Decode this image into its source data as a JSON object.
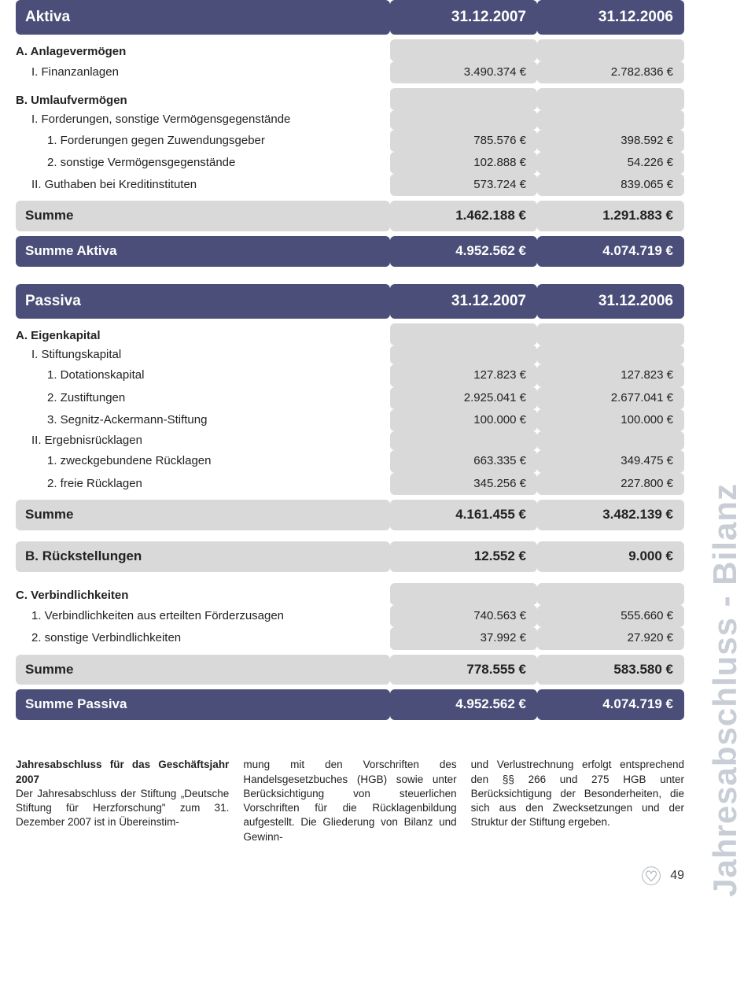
{
  "side_label": "Jahresabschluss - Bilanz",
  "page_number": "49",
  "colors": {
    "header_bg": "#4a4e78",
    "cell_bg": "#d9d9da",
    "side_text": "#c9ced6",
    "heart_outline": "#b0b4bd"
  },
  "aktiva": {
    "header": {
      "label": "Aktiva",
      "c1": "31.12.2007",
      "c2": "31.12.2006"
    },
    "rows": [
      {
        "type": "sec",
        "label": "A.  Anlagevermögen"
      },
      {
        "type": "sub",
        "label": "I.   Finanzanlagen",
        "v1": "3.490.374 €",
        "v2": "2.782.836 €"
      },
      {
        "type": "spacer"
      },
      {
        "type": "sec",
        "label": "B.  Umlaufvermögen"
      },
      {
        "type": "sub",
        "label": "I.   Forderungen, sonstige Vermögensgegenstände"
      },
      {
        "type": "subsub",
        "label": "1.  Forderungen gegen Zuwendungsgeber",
        "v1": "785.576 €",
        "v2": "398.592 €"
      },
      {
        "type": "subsub",
        "label": "2.  sonstige Vermögensgegenstände",
        "v1": "102.888 €",
        "v2": "54.226 €"
      },
      {
        "type": "sub",
        "label": "II.  Guthaben bei Kreditinstituten",
        "v1": "573.724 €",
        "v2": "839.065 €"
      },
      {
        "type": "spacer"
      },
      {
        "type": "sum",
        "label": "Summe",
        "v1": "1.462.188 €",
        "v2": "1.291.883 €"
      },
      {
        "type": "spacer"
      },
      {
        "type": "tot",
        "label": "Summe Aktiva",
        "v1": "4.952.562 €",
        "v2": "4.074.719 €"
      }
    ]
  },
  "passiva": {
    "header": {
      "label": "Passiva",
      "c1": "31.12.2007",
      "c2": "31.12.2006"
    },
    "rows": [
      {
        "type": "sec",
        "label": "A.  Eigenkapital"
      },
      {
        "type": "sub",
        "label": "I.   Stiftungskapital"
      },
      {
        "type": "subsub",
        "label": "1.  Dotationskapital",
        "v1": "127.823 €",
        "v2": "127.823 €"
      },
      {
        "type": "subsub",
        "label": "2.  Zustiftungen",
        "v1": "2.925.041 €",
        "v2": "2.677.041 €"
      },
      {
        "type": "subsub",
        "label": "3.  Segnitz-Ackermann-Stiftung",
        "v1": "100.000 €",
        "v2": "100.000 €"
      },
      {
        "type": "sub",
        "label": "II.  Ergebnisrücklagen"
      },
      {
        "type": "subsub",
        "label": "1.  zweckgebundene Rücklagen",
        "v1": "663.335 €",
        "v2": "349.475 €"
      },
      {
        "type": "subsub",
        "label": "2.  freie Rücklagen",
        "v1": "345.256 €",
        "v2": "227.800 €"
      },
      {
        "type": "spacer"
      },
      {
        "type": "sum",
        "label": "Summe",
        "v1": "4.161.455 €",
        "v2": "3.482.139 €"
      },
      {
        "type": "spacerbig"
      },
      {
        "type": "sumsec",
        "label": "B.  Rückstellungen",
        "v1": "12.552 €",
        "v2": "9.000 €"
      },
      {
        "type": "spacerbig"
      },
      {
        "type": "sec",
        "label": "C.  Verbindlichkeiten"
      },
      {
        "type": "sub",
        "label": "1.  Verbindlichkeiten aus erteilten Förderzusagen",
        "v1": "740.563 €",
        "v2": "555.660 €"
      },
      {
        "type": "sub",
        "label": "2.  sonstige Verbindlichkeiten",
        "v1": "37.992 €",
        "v2": "27.920 €"
      },
      {
        "type": "spacer"
      },
      {
        "type": "sum",
        "label": "Summe",
        "v1": "778.555 €",
        "v2": "583.580 €"
      },
      {
        "type": "spacer"
      },
      {
        "type": "tot",
        "label": "Summe Passiva",
        "v1": "4.952.562 €",
        "v2": "4.074.719 €"
      }
    ]
  },
  "footer": {
    "col1_title": "Jahresabschluss für das Geschäftsjahr 2007",
    "col1_body": "Der Jahresabschluss der Stiftung „Deutsche Stiftung für Herzforschung\" zum 31. Dezember 2007 ist in Übereinstim-",
    "col2_body": "mung mit den Vorschriften des Handelsgesetzbuches (HGB) sowie unter Berücksichtigung von steuerlichen Vorschriften für die Rücklagenbildung aufgestellt. Die Gliederung von Bilanz und Gewinn-",
    "col3_body": "und Verlustrechnung erfolgt entsprechend den §§ 266 und 275 HGB unter Berücksichtigung der Besonderheiten, die sich aus den Zwecksetzungen und der Struktur der Stiftung ergeben."
  }
}
